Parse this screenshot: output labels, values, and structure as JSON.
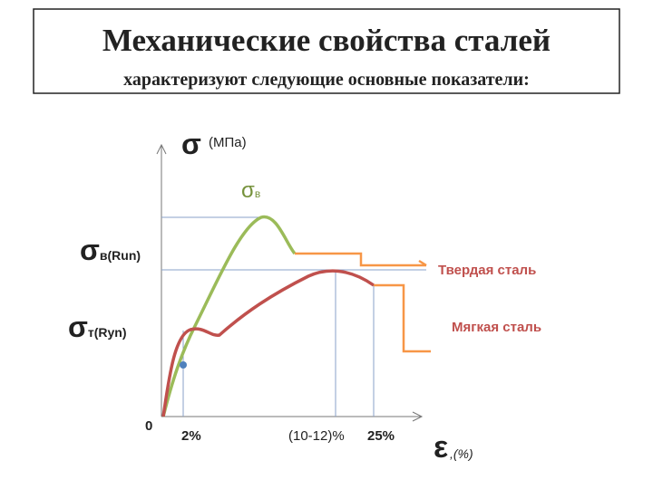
{
  "header": {
    "title": "Механические свойства сталей",
    "subtitle": "характеризуют следующие основные показатели:"
  },
  "axes": {
    "y_symbol": "σ",
    "y_unit": "(МПа)",
    "x_symbol": "ε",
    "x_unit": ",(%)",
    "origin": "0"
  },
  "labels": {
    "peak": {
      "symbol": "σ",
      "sub": "в"
    },
    "ultimate": {
      "symbol": "σ",
      "sub": "в(Run)"
    },
    "yield": {
      "symbol": "σ",
      "sub": "т(Ryn)"
    },
    "hard": "Твердая сталь",
    "soft": "Мягкая сталь"
  },
  "x_marks": [
    "2%",
    "(10-12)%",
    "25%"
  ]
}
